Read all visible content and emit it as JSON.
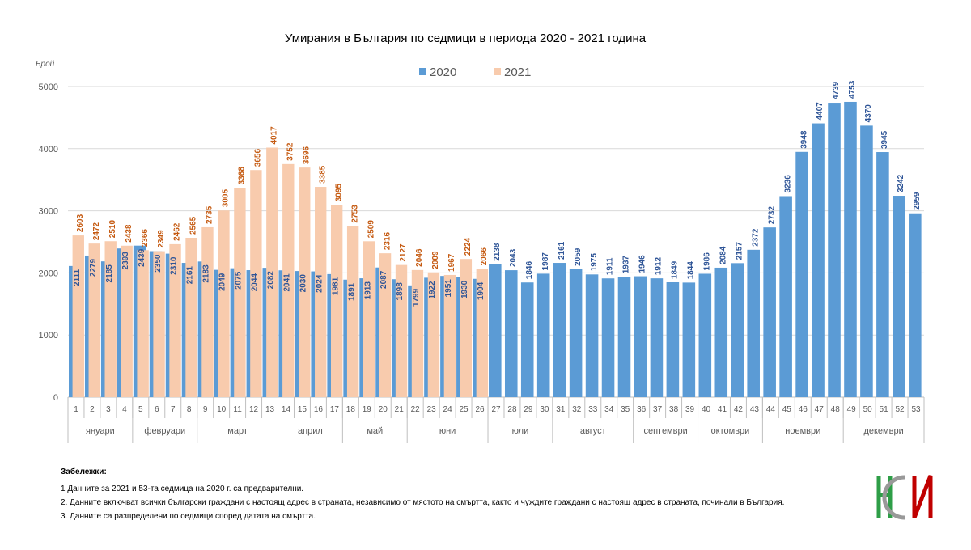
{
  "chart_data": {
    "type": "bar",
    "title": "Умирания в България по седмици в периода 2020 - 2021 година",
    "y_axis_label": "Брой",
    "categories": [
      "1",
      "2",
      "3",
      "4",
      "5",
      "6",
      "7",
      "8",
      "9",
      "10",
      "11",
      "12",
      "13",
      "14",
      "15",
      "16",
      "17",
      "18",
      "19",
      "20",
      "21",
      "22",
      "23",
      "24",
      "25",
      "26",
      "27",
      "28",
      "29",
      "30",
      "31",
      "32",
      "33",
      "34",
      "35",
      "36",
      "37",
      "38",
      "39",
      "40",
      "41",
      "42",
      "43",
      "44",
      "45",
      "46",
      "47",
      "48",
      "49",
      "50",
      "51",
      "52",
      "53"
    ],
    "month_groups": [
      {
        "label": "януари",
        "from": 1,
        "to": 4
      },
      {
        "label": "февруари",
        "from": 5,
        "to": 8
      },
      {
        "label": "март",
        "from": 9,
        "to": 13
      },
      {
        "label": "април",
        "from": 14,
        "to": 17
      },
      {
        "label": "май",
        "from": 18,
        "to": 21
      },
      {
        "label": "юни",
        "from": 22,
        "to": 26
      },
      {
        "label": "юли",
        "from": 27,
        "to": 30
      },
      {
        "label": "август",
        "from": 31,
        "to": 35
      },
      {
        "label": "септември",
        "from": 36,
        "to": 39
      },
      {
        "label": "октомври",
        "from": 40,
        "to": 43
      },
      {
        "label": "ноември",
        "from": 44,
        "to": 48
      },
      {
        "label": "декември",
        "from": 49,
        "to": 53
      }
    ],
    "series": [
      {
        "name": "2020",
        "color": "#5b9bd5",
        "label_color": "#2f5597",
        "values": [
          2111,
          2279,
          2185,
          2393,
          2439,
          2350,
          2310,
          2161,
          2183,
          2049,
          2075,
          2044,
          2082,
          2041,
          2030,
          2024,
          1981,
          1891,
          1913,
          2087,
          1898,
          1799,
          1922,
          1951,
          1930,
          1904,
          2138,
          2043,
          1846,
          1987,
          2161,
          2059,
          1975,
          1911,
          1937,
          1946,
          1912,
          1849,
          1844,
          1986,
          2084,
          2157,
          2372,
          2732,
          3236,
          3948,
          4407,
          4739,
          4753,
          4370,
          3945,
          3242,
          2959
        ]
      },
      {
        "name": "2021",
        "color": "#f8cbad",
        "label_color": "#c55a11",
        "values": [
          2603,
          2472,
          2510,
          2438,
          2366,
          2349,
          2462,
          2565,
          2735,
          3005,
          3368,
          3656,
          4017,
          3752,
          3696,
          3385,
          3095,
          2753,
          2509,
          2316,
          2127,
          2046,
          2009,
          1967,
          2224,
          2066,
          null,
          null,
          null,
          null,
          null,
          null,
          null,
          null,
          null,
          null,
          null,
          null,
          null,
          null,
          null,
          null,
          null,
          null,
          null,
          null,
          null,
          null,
          null,
          null,
          null,
          null,
          null
        ]
      }
    ],
    "ylim": [
      0,
      5000
    ],
    "yticks": [
      0,
      1000,
      2000,
      3000,
      4000,
      5000
    ],
    "grid": true,
    "legend": "top",
    "notes_title": "Забележки:",
    "notes": [
      "1   Данните за 2021 и 53-та седмица на 2020 г. са предварителни.",
      "2. Данните включват всички български граждани с настоящ адрес в страната, независимо от мястото на смъртта, както и чуждите граждани с настоящ адрес в страната, починали в България.",
      "3. Данните са разпределени по седмици според датата на смъртта."
    ]
  }
}
